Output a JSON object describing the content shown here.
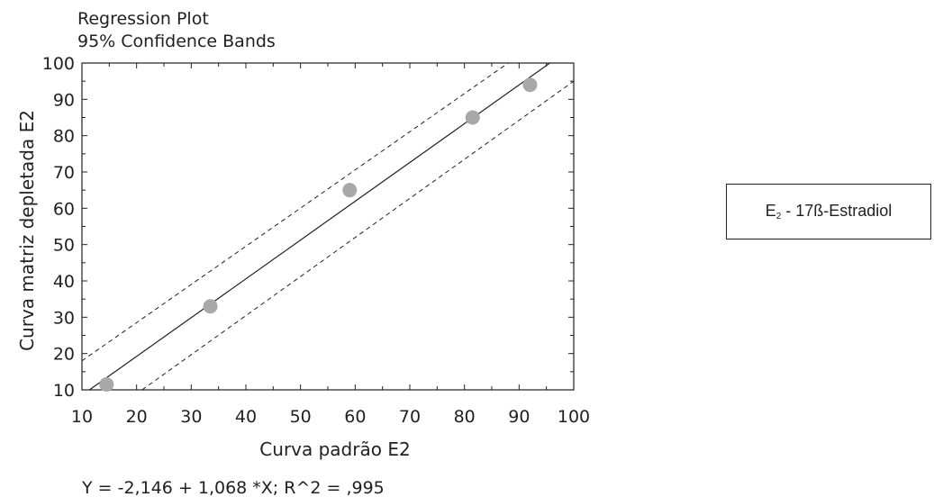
{
  "chart_data": {
    "type": "scatter",
    "title": [
      "Regression Plot",
      "95% Confidence Bands"
    ],
    "xlabel": "Curva padrão E2",
    "ylabel": "Curva matriz depletada E2",
    "xlim": [
      10,
      100
    ],
    "ylim": [
      10,
      100
    ],
    "xticks": [
      "10",
      "20",
      "30",
      "40",
      "50",
      "60",
      "70",
      "80",
      "90",
      "100"
    ],
    "yticks": [
      "10",
      "20",
      "30",
      "40",
      "50",
      "60",
      "70",
      "80",
      "90",
      "100"
    ],
    "points": [
      {
        "x": 14.5,
        "y": 11.5
      },
      {
        "x": 33.5,
        "y": 33
      },
      {
        "x": 59,
        "y": 65
      },
      {
        "x": 81.5,
        "y": 85
      },
      {
        "x": 92,
        "y": 94
      }
    ],
    "regression": {
      "intercept": -2.146,
      "slope": 1.068
    },
    "confidence_upper": [
      [
        10,
        18
      ],
      [
        88,
        100
      ]
    ],
    "confidence_lower": [
      [
        21,
        10
      ],
      [
        100,
        95
      ]
    ],
    "equation": "Y = -2,146 + 1,068 *X; R^2 = ,995",
    "grid": false,
    "point_color": "#a8a8a8",
    "line_color": "#231f20"
  },
  "legend": {
    "main": "E",
    "subscript": "2",
    "rest": " - 17ß-Estradiol"
  }
}
